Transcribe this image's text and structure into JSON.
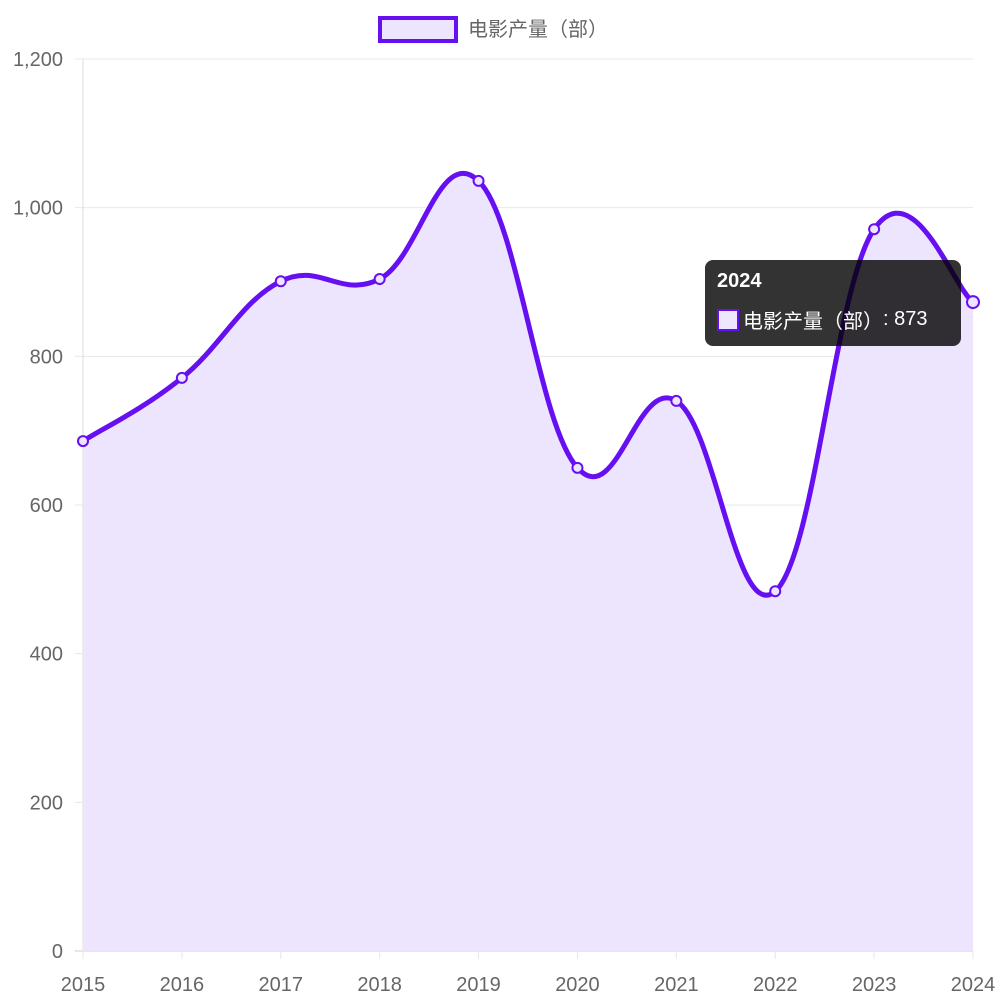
{
  "chart_data": {
    "type": "line",
    "title": "",
    "xlabel": "",
    "ylabel": "",
    "categories": [
      "2015",
      "2016",
      "2017",
      "2018",
      "2019",
      "2020",
      "2021",
      "2022",
      "2023",
      "2024"
    ],
    "series": [
      {
        "name": "电影产量（部）",
        "values": [
          686,
          771,
          901,
          904,
          1036,
          650,
          740,
          484,
          971,
          873
        ],
        "color": "#6610f2",
        "fill": "#ede5fd"
      }
    ],
    "ylim": [
      0,
      1200
    ],
    "yticks": [
      0,
      200,
      400,
      600,
      800,
      1000,
      1200
    ],
    "ytick_labels": [
      "0",
      "200",
      "400",
      "600",
      "800",
      "1,000",
      "1,200"
    ],
    "grid": true,
    "legend": "top-center",
    "tooltip": {
      "title": "2024",
      "label": "电影产量（部）",
      "value": "873"
    }
  }
}
